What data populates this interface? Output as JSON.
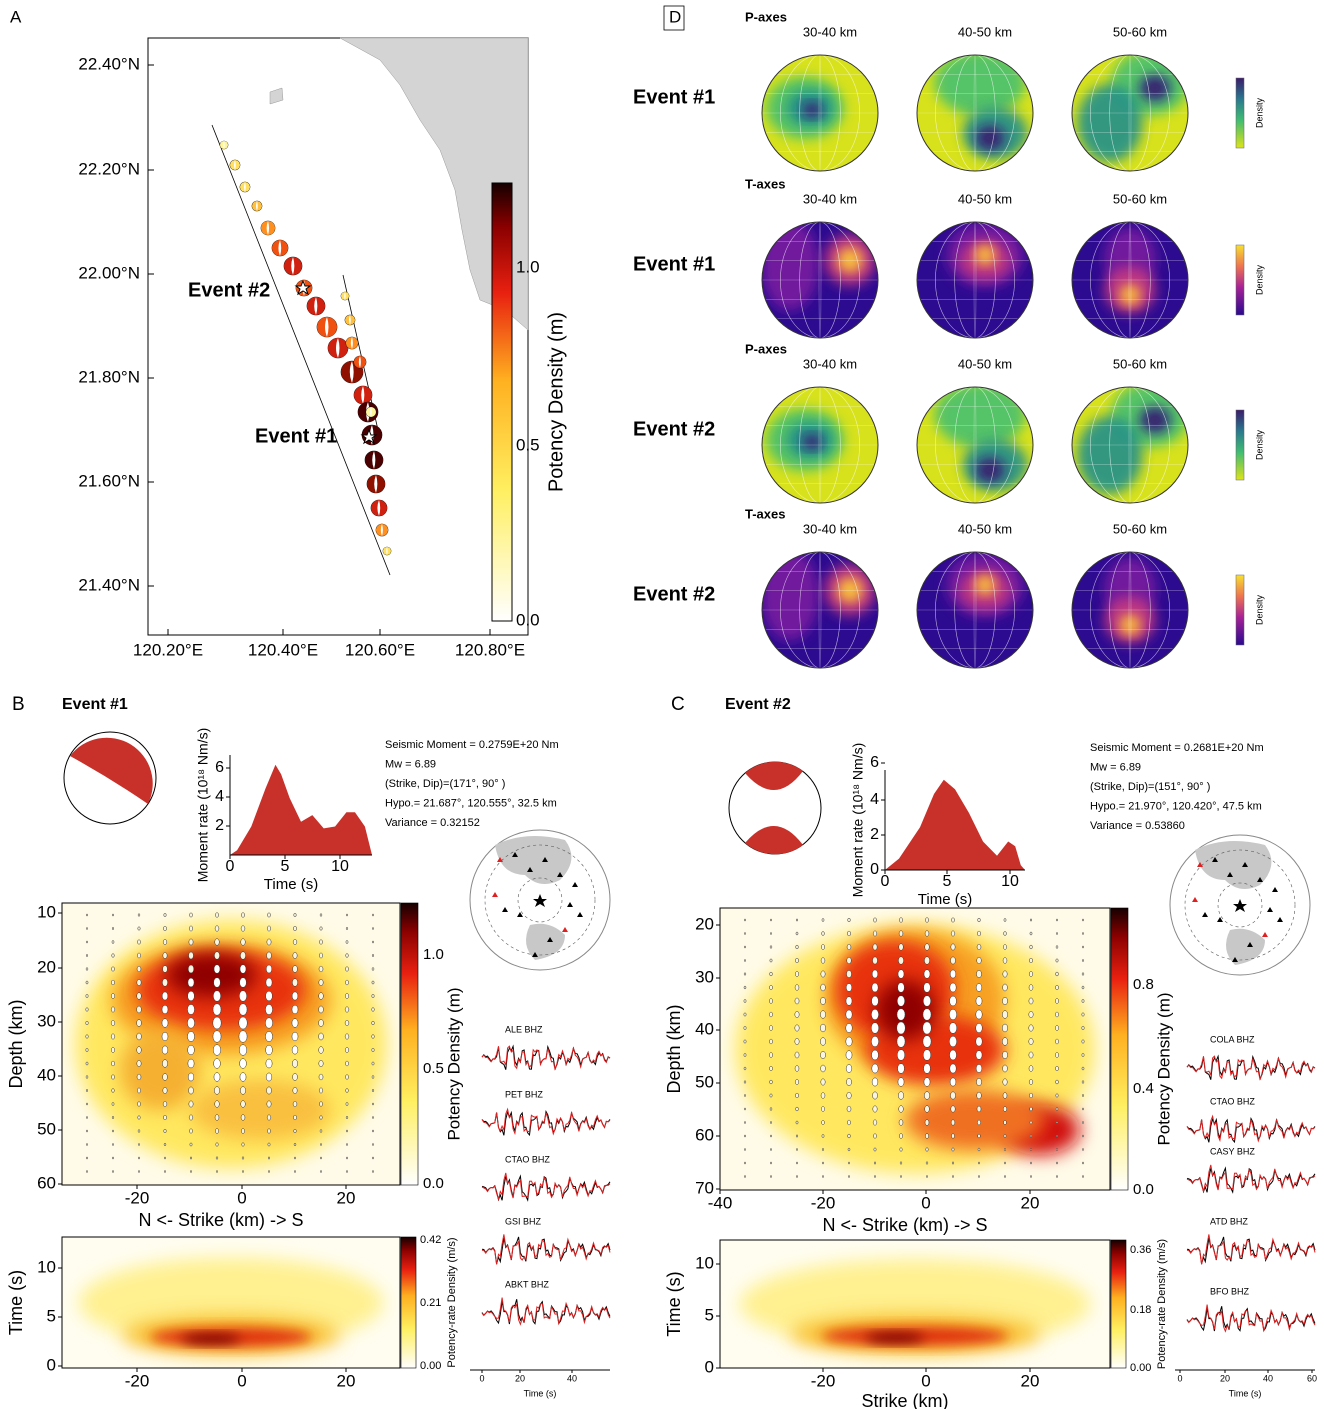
{
  "panel_a": {
    "label": "A",
    "y_ticks": [
      "22.40°N",
      "22.20°N",
      "22.00°N",
      "21.80°N",
      "21.60°N",
      "21.40°N"
    ],
    "x_ticks": [
      "120.20°E",
      "120.40°E",
      "120.60°E",
      "120.80°E"
    ],
    "annotations": [
      "Event #2",
      "Event #1"
    ],
    "colorbar": {
      "label": "Potency Density (m)",
      "ticks": [
        "1.0",
        "0.5",
        "0.0"
      ]
    }
  },
  "panel_d": {
    "label": "D",
    "rows": [
      {
        "axes": "P-axes",
        "event": "Event #1",
        "depths": [
          "30-40 km",
          "40-50 km",
          "50-60 km"
        ],
        "colorbar_label": "Density"
      },
      {
        "axes": "T-axes",
        "event": "Event #1",
        "depths": [
          "30-40 km",
          "40-50 km",
          "50-60 km"
        ],
        "colorbar_label": "Density"
      },
      {
        "axes": "P-axes",
        "event": "Event #2",
        "depths": [
          "30-40 km",
          "40-50 km",
          "50-60 km"
        ],
        "colorbar_label": "Density"
      },
      {
        "axes": "T-axes",
        "event": "Event #2",
        "depths": [
          "30-40 km",
          "40-50 km",
          "50-60 km"
        ],
        "colorbar_label": "Density"
      }
    ]
  },
  "panels_bc": [
    {
      "label": "B",
      "title": "Event #1",
      "info": [
        "Seismic Moment = 0.2759E+20 Nm",
        "Mw = 6.89",
        "(Strike, Dip)=(171°, 90° )",
        "Hypo.= 21.687°, 120.555°, 32.5 km",
        "Variance = 0.32152"
      ],
      "moment_rate": {
        "ylabel": "Moment rate (10¹⁸ Nm/s)",
        "xlabel": "Time (s)",
        "yticks": [
          "2",
          "4",
          "6"
        ],
        "xticks": [
          "0",
          "5",
          "10"
        ]
      },
      "slip": {
        "ylabel": "Depth (km)",
        "xlabel": "N <- Strike (km) -> S",
        "yticks": [
          "10",
          "20",
          "30",
          "40",
          "50",
          "60"
        ],
        "xticks": [
          "-20",
          "0",
          "20"
        ],
        "colorbar_label": "Potency Density (m)",
        "colorbar_ticks": [
          "1.0",
          "0.5",
          "0.0"
        ]
      },
      "rate": {
        "ylabel": "Time (s)",
        "yticks": [
          "0",
          "5",
          "10"
        ],
        "xticks": [
          "-20",
          "0",
          "20"
        ],
        "colorbar_label": "Potency-rate Density (m/s)",
        "colorbar_ticks": [
          "0.42",
          "0.21",
          "0.00"
        ]
      },
      "waveforms": {
        "stations": [
          "ALE BHZ",
          "PET BHZ",
          "CTAO BHZ",
          "GSI BHZ",
          "ABKT BHZ"
        ],
        "xticks": [
          "0",
          "20",
          "40"
        ],
        "xlabel": "Time (s)"
      }
    },
    {
      "label": "C",
      "title": "Event #2",
      "info": [
        "Seismic Moment = 0.2681E+20 Nm",
        "Mw = 6.89",
        "(Strike, Dip)=(151°, 90° )",
        "Hypo.= 21.970°, 120.420°, 47.5 km",
        "Variance = 0.53860"
      ],
      "moment_rate": {
        "ylabel": "Moment rate (10¹⁸ Nm/s)",
        "xlabel": "Time (s)",
        "yticks": [
          "0",
          "2",
          "4",
          "6"
        ],
        "xticks": [
          "0",
          "5",
          "10"
        ]
      },
      "slip": {
        "ylabel": "Depth (km)",
        "xlabel": "N <- Strike (km) -> S",
        "yticks": [
          "20",
          "30",
          "40",
          "50",
          "60",
          "70"
        ],
        "xticks": [
          "-40",
          "-20",
          "0",
          "20"
        ],
        "colorbar_label": "Potency Density (m)",
        "colorbar_ticks": [
          "0.8",
          "0.4",
          "0.0"
        ]
      },
      "rate": {
        "ylabel": "Time (s)",
        "xlabel": "Strike (km)",
        "yticks": [
          "0",
          "5",
          "10"
        ],
        "xticks": [
          "-20",
          "0",
          "20"
        ],
        "colorbar_label": "Potency-rate Density (m/s)",
        "colorbar_ticks": [
          "0.36",
          "0.18",
          "0.00"
        ]
      },
      "waveforms": {
        "stations": [
          "COLA BHZ",
          "CTAO BHZ",
          "CASY BHZ",
          "ATD BHZ",
          "BFO BHZ"
        ],
        "xticks": [
          "0",
          "20",
          "40",
          "60"
        ],
        "xlabel": "Time (s)"
      }
    }
  ]
}
